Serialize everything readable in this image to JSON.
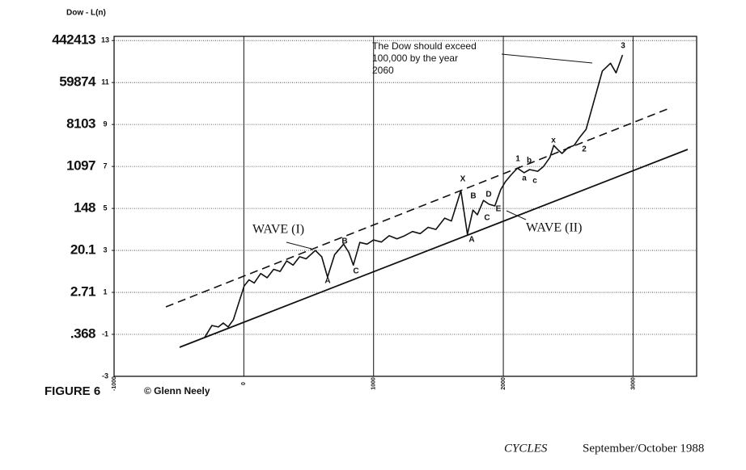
{
  "chart_data": {
    "type": "line",
    "ylabel": "Dow - L(n)",
    "x": [
      -302,
      -246,
      -196,
      -159,
      -121,
      -80,
      3,
      40,
      80,
      130,
      180,
      230,
      280,
      330,
      380,
      430,
      480,
      551,
      600,
      645,
      700,
      769,
      810,
      844,
      894,
      950,
      1000,
      1060,
      1120,
      1180,
      1237,
      1300,
      1360,
      1420,
      1480,
      1548,
      1600,
      1673,
      1723,
      1766,
      1800,
      1847,
      1890,
      1935,
      1980,
      2016,
      2060,
      2109,
      2160,
      2202,
      2265,
      2310,
      2358,
      2389,
      2420,
      2452,
      2500,
      2545,
      2590,
      2638,
      2763,
      2826,
      2869,
      2919
    ],
    "values": [
      -1.15,
      -0.58,
      -0.65,
      -0.46,
      -0.65,
      -0.3,
      1.31,
      1.6,
      1.45,
      1.9,
      1.7,
      2.1,
      2.0,
      2.5,
      2.3,
      2.7,
      2.6,
      3.0,
      2.7,
      1.73,
      2.8,
      3.3,
      2.9,
      2.3,
      3.38,
      3.3,
      3.5,
      3.4,
      3.7,
      3.55,
      3.69,
      3.9,
      3.8,
      4.1,
      4.0,
      4.54,
      4.4,
      5.85,
      3.77,
      4.92,
      4.7,
      5.38,
      5.2,
      5.12,
      5.9,
      6.27,
      6.6,
      6.92,
      6.7,
      6.85,
      6.77,
      7.0,
      7.42,
      8.0,
      7.8,
      7.62,
      7.9,
      8.0,
      8.4,
      8.77,
      11.54,
      11.92,
      11.46,
      12.31
    ],
    "color": "#111111",
    "xlim": [
      -1000,
      3490
    ],
    "xticks": [
      -1000,
      0,
      1000,
      2000,
      3000
    ],
    "ylim": [
      -3,
      13.2
    ],
    "yticks": [
      -3,
      -1,
      1,
      3,
      5,
      7,
      9,
      11,
      13
    ],
    "dow_ticks": [
      {
        "value": -1,
        "label": ".368"
      },
      {
        "value": 1,
        "label": "2.71"
      },
      {
        "value": 3,
        "label": "20.1"
      },
      {
        "value": 5,
        "label": "148"
      },
      {
        "value": 7,
        "label": "1097"
      },
      {
        "value": 9,
        "label": "8103"
      },
      {
        "value": 11,
        "label": "59874"
      },
      {
        "value": 13,
        "label": "442413"
      }
    ],
    "grid": true,
    "wave_labels": [
      "A",
      "B",
      "C",
      "X",
      "A",
      "B",
      "C",
      "D",
      "E",
      "1",
      "b",
      "a",
      "c",
      "x",
      "2",
      "3"
    ],
    "wave_annotations": [
      "WAVE (I)",
      "WAVE (II)"
    ],
    "note": [
      "The Dow should exceed",
      "100,000 by the year",
      "2060"
    ],
    "figure_label": "FIGURE 6",
    "credit": "© Glenn Neely",
    "source": [
      "CYCLES",
      "September/October 1988"
    ]
  }
}
